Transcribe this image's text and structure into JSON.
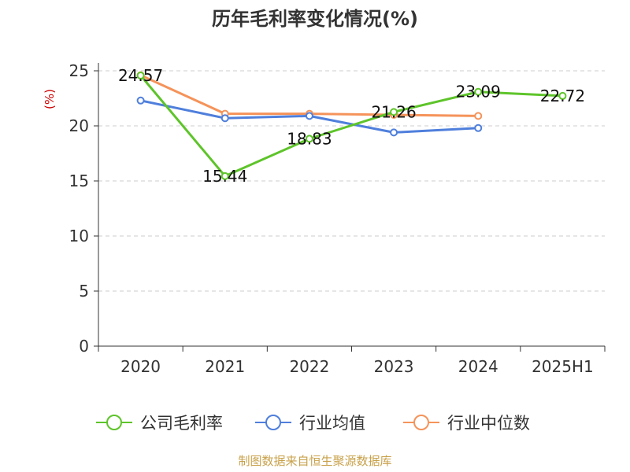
{
  "chart_data": {
    "type": "line",
    "title": "历年毛利率变化情况(%)",
    "ylabel": "(%)",
    "xlabel": "",
    "categories": [
      "2020",
      "2021",
      "2022",
      "2023",
      "2024",
      "2025H1"
    ],
    "ylim": [
      0,
      25
    ],
    "yticks": [
      0,
      5,
      10,
      15,
      20,
      25
    ],
    "grid": true,
    "legend_position": "bottom",
    "series": [
      {
        "name": "公司毛利率",
        "color": "#5ec42a",
        "values": [
          24.57,
          15.44,
          18.83,
          21.26,
          23.09,
          22.72
        ],
        "labels": [
          "24.57",
          "15.44",
          "18.83",
          "21.26",
          "23.09",
          "22.72"
        ]
      },
      {
        "name": "行业均值",
        "color": "#4f7fdc",
        "values": [
          22.3,
          20.7,
          20.9,
          19.4,
          19.8,
          null
        ]
      },
      {
        "name": "行业中位数",
        "color": "#f5935a",
        "values": [
          24.6,
          21.1,
          21.1,
          21.0,
          20.9,
          null
        ]
      }
    ]
  },
  "source": "制图数据来自恒生聚源数据库"
}
